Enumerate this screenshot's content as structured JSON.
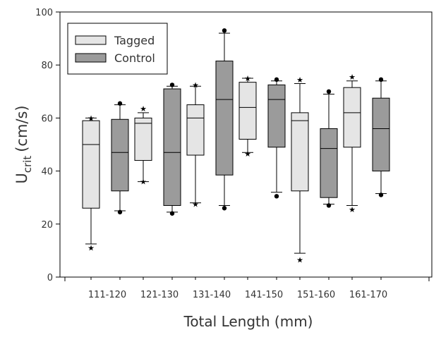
{
  "chart_data": {
    "type": "boxplot",
    "xlabel": "Total Length (mm)",
    "ylabel": "U",
    "ylabel_sub": "crit",
    "ylabel_unit": "(cm/s)",
    "ylim": [
      0,
      100
    ],
    "yticks": [
      0,
      20,
      40,
      60,
      80,
      100
    ],
    "categories": [
      "111-120",
      "121-130",
      "131-140",
      "141-150",
      "151-160",
      "161-170"
    ],
    "legend": [
      {
        "name": "Tagged",
        "color": "#e5e5e5"
      },
      {
        "name": "Control",
        "color": "#9b9b9b"
      }
    ],
    "legend_position": "top-left",
    "boxes": [
      {
        "group": "111-120",
        "series": "Tagged",
        "q1": 26,
        "median": 50,
        "q3": 59,
        "whisker_low": 12.5,
        "whisker_high": 60,
        "outliers": [
          {
            "value": 11,
            "marker": "star"
          },
          {
            "value": 60,
            "marker": "star"
          }
        ]
      },
      {
        "group": "111-120",
        "series": "Control",
        "q1": 32.5,
        "median": 47,
        "q3": 59.5,
        "whisker_low": 25,
        "whisker_high": 65,
        "outliers": [
          {
            "value": 24.5,
            "marker": "dot"
          },
          {
            "value": 65.5,
            "marker": "dot"
          }
        ]
      },
      {
        "group": "121-130",
        "series": "Tagged",
        "q1": 44,
        "median": 58,
        "q3": 60,
        "whisker_low": 36,
        "whisker_high": 62,
        "outliers": [
          {
            "value": 36,
            "marker": "star"
          },
          {
            "value": 63.5,
            "marker": "star"
          }
        ]
      },
      {
        "group": "121-130",
        "series": "Control",
        "q1": 27,
        "median": 47,
        "q3": 71,
        "whisker_low": 24.5,
        "whisker_high": 72,
        "outliers": [
          {
            "value": 24,
            "marker": "dot"
          },
          {
            "value": 72.5,
            "marker": "dot"
          }
        ]
      },
      {
        "group": "131-140",
        "series": "Tagged",
        "q1": 46,
        "median": 60,
        "q3": 65,
        "whisker_low": 28,
        "whisker_high": 72,
        "outliers": [
          {
            "value": 27.5,
            "marker": "star"
          },
          {
            "value": 72.5,
            "marker": "star"
          }
        ]
      },
      {
        "group": "131-140",
        "series": "Control",
        "q1": 38.5,
        "median": 67,
        "q3": 81.5,
        "whisker_low": 27,
        "whisker_high": 92,
        "outliers": [
          {
            "value": 26,
            "marker": "dot"
          },
          {
            "value": 93,
            "marker": "dot"
          }
        ]
      },
      {
        "group": "141-150",
        "series": "Tagged",
        "q1": 52,
        "median": 64,
        "q3": 73.5,
        "whisker_low": 47,
        "whisker_high": 75,
        "outliers": [
          {
            "value": 46.5,
            "marker": "star"
          },
          {
            "value": 75,
            "marker": "star"
          }
        ]
      },
      {
        "group": "141-150",
        "series": "Control",
        "q1": 49,
        "median": 67,
        "q3": 72.5,
        "whisker_low": 32,
        "whisker_high": 74,
        "outliers": [
          {
            "value": 30.5,
            "marker": "dot"
          },
          {
            "value": 74.5,
            "marker": "dot"
          }
        ]
      },
      {
        "group": "151-160",
        "series": "Tagged",
        "q1": 32.5,
        "median": 59,
        "q3": 62,
        "whisker_low": 9,
        "whisker_high": 73,
        "outliers": [
          {
            "value": 6.5,
            "marker": "star"
          },
          {
            "value": 74.5,
            "marker": "star"
          }
        ]
      },
      {
        "group": "151-160",
        "series": "Control",
        "q1": 30,
        "median": 48.5,
        "q3": 56,
        "whisker_low": 27.5,
        "whisker_high": 69,
        "outliers": [
          {
            "value": 27,
            "marker": "dot"
          },
          {
            "value": 70,
            "marker": "dot"
          }
        ]
      },
      {
        "group": "161-170",
        "series": "Tagged",
        "q1": 49,
        "median": 62,
        "q3": 71.5,
        "whisker_low": 27,
        "whisker_high": 74,
        "outliers": [
          {
            "value": 25.5,
            "marker": "star"
          },
          {
            "value": 75.5,
            "marker": "star"
          }
        ]
      },
      {
        "group": "161-170",
        "series": "Control",
        "q1": 40,
        "median": 56,
        "q3": 67.5,
        "whisker_low": 31.5,
        "whisker_high": 74,
        "outliers": [
          {
            "value": 31,
            "marker": "dot"
          },
          {
            "value": 74.5,
            "marker": "dot"
          }
        ]
      }
    ]
  }
}
